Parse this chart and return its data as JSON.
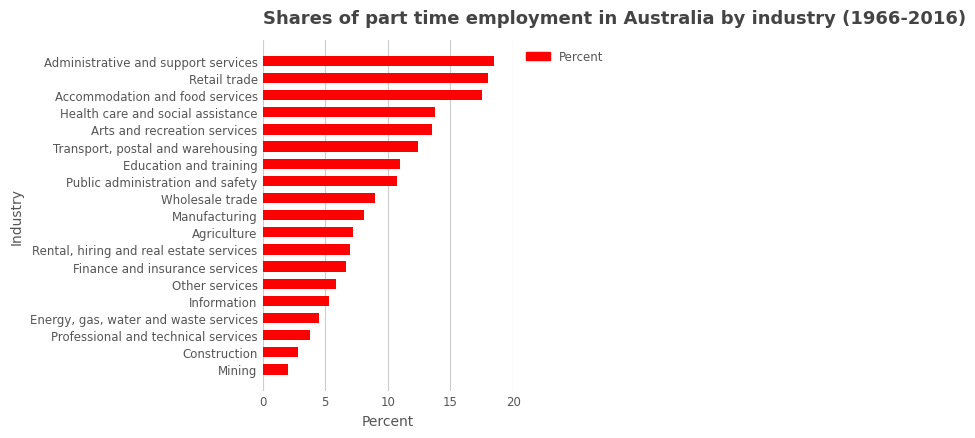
{
  "title": "Shares of part time employment in Australia by industry (1966-2016)",
  "xlabel": "Percent",
  "ylabel": "Industry",
  "bar_color": "#ff0000",
  "background_color": "#ffffff",
  "categories": [
    "Administrative and support services",
    "Retail trade",
    "Accommodation and food services",
    "Health care and social assistance",
    "Arts and recreation services",
    "Transport, postal and warehousing",
    "Education and training",
    "Public administration and safety",
    "Wholesale trade",
    "Manufacturing",
    "Agriculture",
    "Rental, hiring and real estate services",
    "Finance and insurance services",
    "Other services",
    "Information",
    "Energy, gas, water and waste services",
    "Professional and technical services",
    "Construction",
    "Mining"
  ],
  "values": [
    18.5,
    18.0,
    17.5,
    13.8,
    13.5,
    12.4,
    11.0,
    10.7,
    9.0,
    8.1,
    7.2,
    7.0,
    6.7,
    5.9,
    5.3,
    4.5,
    3.8,
    2.8,
    2.0
  ],
  "xlim": [
    0,
    20
  ],
  "xticks": [
    0,
    5,
    10,
    15,
    20
  ],
  "legend_label": "Percent",
  "title_fontsize": 13,
  "label_fontsize": 10,
  "tick_fontsize": 8.5
}
